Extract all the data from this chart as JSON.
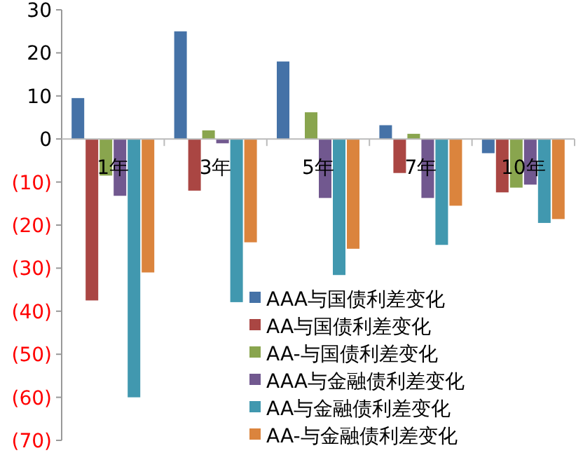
{
  "chart_data": {
    "type": "bar",
    "categories": [
      "1年",
      "3年",
      "5年",
      "7年",
      "10年"
    ],
    "series": [
      {
        "name": "AAA与国债利差变化",
        "color": "#4572a7",
        "values": [
          9.5,
          25,
          18,
          3.2,
          -3.3
        ]
      },
      {
        "name": "AA与国债利差变化",
        "color": "#aa4643",
        "values": [
          -37.5,
          -12,
          0,
          -7.9,
          -12.4
        ]
      },
      {
        "name": "AA-与国债利差变化",
        "color": "#89a54e",
        "values": [
          -8.5,
          2,
          6.2,
          1.2,
          -11.3
        ]
      },
      {
        "name": "AAA与金融债利差变化",
        "color": "#71588f",
        "values": [
          -13.2,
          -1,
          -13.7,
          -13.7,
          -10.6
        ]
      },
      {
        "name": "AA与金融债利差变化",
        "color": "#4198af",
        "values": [
          -60,
          -37.9,
          -31.6,
          -24.6,
          -19.5
        ]
      },
      {
        "name": "AA-与金融债利差变化",
        "color": "#db843d",
        "values": [
          -31,
          -24,
          -25.5,
          -15.5,
          -18.6
        ]
      }
    ],
    "ylim": [
      -70,
      30
    ],
    "yticks": [
      30,
      20,
      10,
      0,
      {
        "value": -10,
        "label": "(10)"
      },
      {
        "value": -20,
        "label": "(20)"
      },
      {
        "value": -30,
        "label": "(30)"
      },
      {
        "value": -40,
        "label": "(40)"
      },
      {
        "value": -50,
        "label": "(50)"
      },
      {
        "value": -60,
        "label": "(60)"
      },
      {
        "value": -70,
        "label": "(70)"
      }
    ],
    "legend": "bottom right",
    "grid": false
  }
}
